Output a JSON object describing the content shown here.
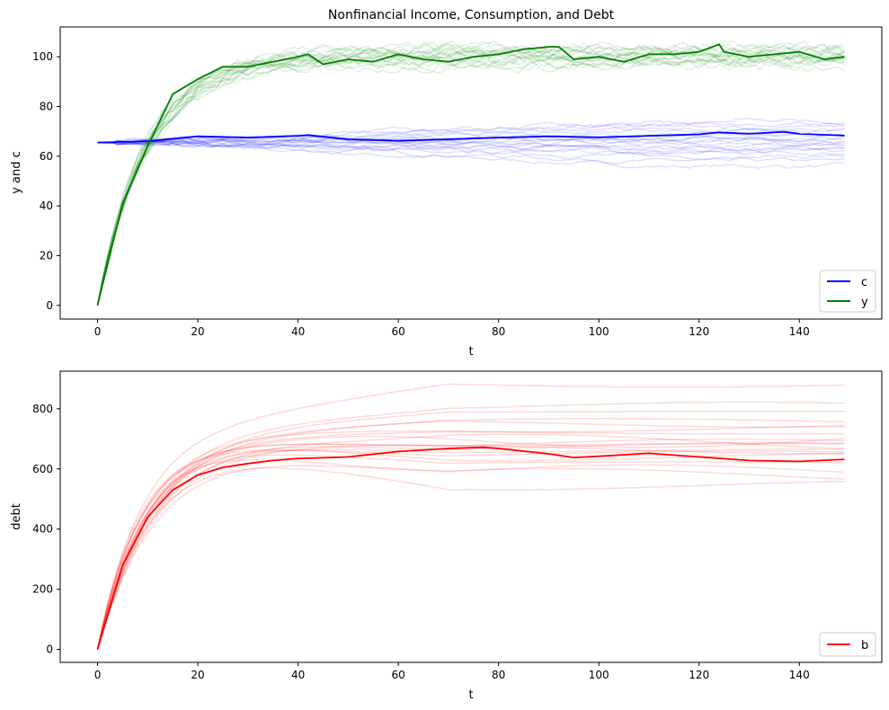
{
  "chart_data": [
    {
      "type": "line",
      "title": "Nonfinancial Income, Consumption, and Debt",
      "xlabel": "t",
      "ylabel": "y and c",
      "xlim": [
        -7.45,
        156.45
      ],
      "ylim": [
        -5.5,
        112
      ],
      "xticks": [
        0,
        20,
        40,
        60,
        80,
        100,
        120,
        140
      ],
      "yticks": [
        0,
        20,
        40,
        60,
        80,
        100
      ],
      "grid": false,
      "legend_position": "lower-right",
      "series": [
        {
          "name": "c",
          "color": "#0000ff",
          "x": [
            0,
            10,
            20,
            30,
            40,
            42,
            50,
            60,
            70,
            80,
            90,
            100,
            110,
            120,
            124,
            130,
            137,
            140,
            149
          ],
          "values": [
            65.5,
            66.0,
            68.0,
            67.5,
            68.2,
            68.5,
            66.8,
            66.2,
            66.8,
            67.5,
            68.0,
            67.6,
            68.2,
            68.8,
            69.6,
            69.0,
            69.8,
            69.0,
            68.3
          ]
        },
        {
          "name": "y",
          "color": "#008000",
          "x": [
            0,
            5,
            10,
            15,
            20,
            25,
            30,
            35,
            40,
            42,
            45,
            50,
            55,
            60,
            65,
            70,
            75,
            80,
            85,
            90,
            92,
            95,
            100,
            105,
            110,
            115,
            120,
            124,
            125,
            130,
            135,
            140,
            145,
            149
          ],
          "values": [
            0,
            41,
            64,
            85,
            91,
            96,
            96,
            98,
            100,
            101,
            97,
            99,
            98,
            101,
            99,
            98,
            100,
            101,
            103,
            104,
            104,
            99,
            100,
            98,
            101,
            101,
            102,
            105,
            102,
            100,
            101,
            102,
            99,
            100
          ]
        }
      ],
      "ensemble": {
        "count": 20,
        "opacity": 0.12,
        "c_endpoints": [
          56,
          58,
          60,
          61,
          62,
          63,
          63,
          64,
          65,
          66,
          66,
          67,
          67,
          68,
          69,
          70,
          71,
          72,
          73,
          74
        ],
        "y_endpoints": [
          96,
          97,
          97,
          98,
          98,
          99,
          99,
          100,
          100,
          100,
          100,
          101,
          101,
          101,
          102,
          102,
          103,
          103,
          104,
          104
        ]
      }
    },
    {
      "type": "line",
      "title": "",
      "xlabel": "t",
      "ylabel": "debt",
      "xlim": [
        -7.45,
        156.45
      ],
      "ylim": [
        -43,
        925
      ],
      "xticks": [
        0,
        20,
        40,
        60,
        80,
        100,
        120,
        140
      ],
      "yticks": [
        0,
        200,
        400,
        600,
        800
      ],
      "grid": false,
      "legend_position": "lower-right",
      "series": [
        {
          "name": "b",
          "color": "#ff0000",
          "x": [
            0,
            5,
            10,
            15,
            20,
            25,
            30,
            35,
            40,
            45,
            50,
            60,
            70,
            77,
            80,
            90,
            95,
            100,
            110,
            120,
            130,
            140,
            149
          ],
          "values": [
            0,
            280,
            440,
            530,
            580,
            605,
            618,
            628,
            635,
            637,
            640,
            658,
            668,
            672,
            668,
            650,
            638,
            642,
            652,
            640,
            628,
            625,
            632
          ]
        }
      ],
      "ensemble": {
        "count": 20,
        "opacity": 0.15,
        "plateaus": [
          545,
          580,
          590,
          620,
          640,
          650,
          660,
          665,
          675,
          680,
          685,
          690,
          700,
          720,
          735,
          750,
          760,
          790,
          810,
          880
        ]
      }
    }
  ]
}
